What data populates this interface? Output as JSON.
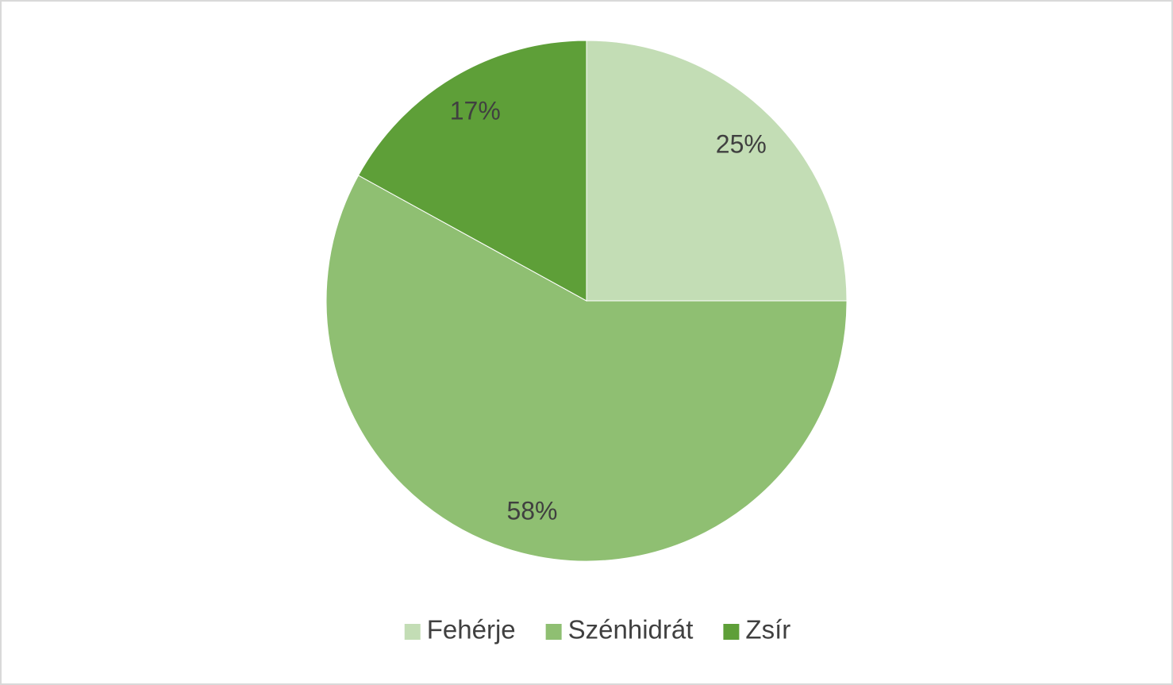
{
  "chart_data": {
    "type": "pie",
    "categories": [
      "Fehérje",
      "Szénhidrát",
      "Zsír"
    ],
    "values": [
      25,
      58,
      17
    ],
    "value_labels": [
      "25%",
      "58%",
      "17%"
    ],
    "colors": [
      "#c3ddb5",
      "#8fbf72",
      "#5e9f38"
    ],
    "legend": "bottom"
  }
}
